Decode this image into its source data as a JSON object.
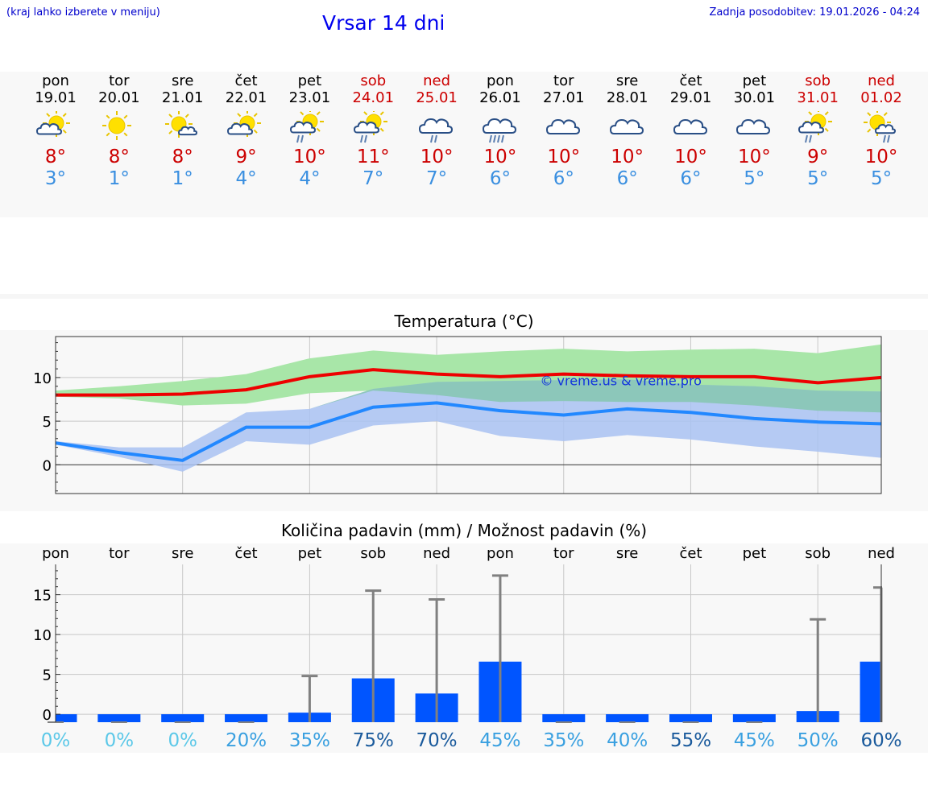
{
  "header": {
    "hint": "(kraj lahko izberete v meniju)",
    "title": "Vrsar 14 dni",
    "updated": "Zadnja posodobitev: 19.01.2026 - 04:24"
  },
  "colors": {
    "title": "#0000ee",
    "weekend": "#cc0000",
    "tmax": "#cc0000",
    "tmin": "#3a8fe0",
    "max_line": "#ee0000",
    "min_line": "#2288ff",
    "max_band": "#a8e6a8",
    "min_band": "#a9c2f2",
    "overlap_band": "#80c6a6",
    "bar": "#0055ff",
    "whisker": "#808080"
  },
  "days": [
    {
      "name": "pon",
      "date": "19.01",
      "weekend": false,
      "icon": "sun-cloud-icon",
      "tmax": "8°",
      "tmin": "3°"
    },
    {
      "name": "tor",
      "date": "20.01",
      "weekend": false,
      "icon": "sun-icon",
      "tmax": "8°",
      "tmin": "1°"
    },
    {
      "name": "sre",
      "date": "21.01",
      "weekend": false,
      "icon": "sun-small-cloud-icon",
      "tmax": "8°",
      "tmin": "1°"
    },
    {
      "name": "čet",
      "date": "22.01",
      "weekend": false,
      "icon": "sun-cloud-icon",
      "tmax": "9°",
      "tmin": "4°"
    },
    {
      "name": "pet",
      "date": "23.01",
      "weekend": false,
      "icon": "sun-cloud-rain-icon",
      "tmax": "10°",
      "tmin": "4°"
    },
    {
      "name": "sob",
      "date": "24.01",
      "weekend": true,
      "icon": "sun-cloud-rain-icon",
      "tmax": "11°",
      "tmin": "7°"
    },
    {
      "name": "ned",
      "date": "25.01",
      "weekend": true,
      "icon": "cloud-rain-icon",
      "tmax": "10°",
      "tmin": "7°"
    },
    {
      "name": "pon",
      "date": "26.01",
      "weekend": false,
      "icon": "cloud-heavy-rain-icon",
      "tmax": "10°",
      "tmin": "6°"
    },
    {
      "name": "tor",
      "date": "27.01",
      "weekend": false,
      "icon": "cloud-icon",
      "tmax": "10°",
      "tmin": "6°"
    },
    {
      "name": "sre",
      "date": "28.01",
      "weekend": false,
      "icon": "cloud-icon",
      "tmax": "10°",
      "tmin": "6°"
    },
    {
      "name": "čet",
      "date": "29.01",
      "weekend": false,
      "icon": "cloud-icon",
      "tmax": "10°",
      "tmin": "6°"
    },
    {
      "name": "pet",
      "date": "30.01",
      "weekend": false,
      "icon": "cloud-icon",
      "tmax": "10°",
      "tmin": "5°"
    },
    {
      "name": "sob",
      "date": "31.01",
      "weekend": true,
      "icon": "sun-cloud-rain-icon",
      "tmax": "9°",
      "tmin": "5°"
    },
    {
      "name": "ned",
      "date": "01.02",
      "weekend": true,
      "icon": "sun-small-cloud-rain-icon",
      "tmax": "10°",
      "tmin": "5°"
    }
  ],
  "chart_data": [
    {
      "type": "line",
      "title": "Temperatura (°C)",
      "watermark": "© vreme.us & vreme.pro",
      "x": [
        0,
        1,
        2,
        3,
        4,
        5,
        6,
        7,
        8,
        9,
        10,
        11,
        12,
        13
      ],
      "xlim": [
        0,
        13
      ],
      "ylim": [
        -3.3,
        14.7
      ],
      "yticks": [
        0,
        5,
        10
      ],
      "grid": true,
      "series": [
        {
          "name": "max",
          "values": [
            8.0,
            8.0,
            8.1,
            8.6,
            10.1,
            10.9,
            10.4,
            10.1,
            10.4,
            10.2,
            10.1,
            10.1,
            9.4,
            10.0
          ]
        },
        {
          "name": "max_band_upper",
          "values": [
            8.5,
            9.0,
            9.6,
            10.4,
            12.2,
            13.1,
            12.6,
            13.0,
            13.3,
            13.0,
            13.2,
            13.3,
            12.8,
            13.8
          ]
        },
        {
          "name": "max_band_lower",
          "values": [
            7.8,
            7.6,
            6.8,
            7.0,
            8.2,
            8.5,
            8.0,
            7.2,
            7.3,
            7.2,
            7.2,
            6.8,
            6.2,
            6.0
          ]
        },
        {
          "name": "min",
          "values": [
            2.5,
            1.4,
            0.5,
            4.3,
            4.3,
            6.6,
            7.1,
            6.2,
            5.7,
            6.4,
            6.0,
            5.3,
            4.9,
            4.7
          ]
        },
        {
          "name": "min_band_upper",
          "values": [
            2.7,
            2.0,
            2.0,
            6.0,
            6.4,
            8.7,
            9.5,
            9.6,
            9.7,
            9.8,
            9.2,
            9.0,
            8.5,
            8.4
          ]
        },
        {
          "name": "min_band_lower",
          "values": [
            2.3,
            0.9,
            -0.8,
            2.7,
            2.3,
            4.5,
            5.0,
            3.3,
            2.7,
            3.4,
            2.9,
            2.1,
            1.5,
            0.8
          ]
        }
      ]
    },
    {
      "type": "bar",
      "title": "Količina padavin (mm) / Možnost padavin (%)",
      "categories": [
        "pon",
        "tor",
        "sre",
        "čet",
        "pet",
        "sob",
        "ned",
        "pon",
        "tor",
        "sre",
        "čet",
        "pet",
        "sob",
        "ned"
      ],
      "values": [
        0,
        0,
        0,
        0,
        0.2,
        4.5,
        2.6,
        6.6,
        0,
        0,
        0,
        0,
        0.4,
        6.6
      ],
      "max_values": [
        0,
        0,
        0,
        0,
        4.8,
        15.5,
        14.4,
        17.4,
        0,
        0,
        0,
        0,
        11.9,
        15.9
      ],
      "probabilities": [
        "0%",
        "0%",
        "0%",
        "20%",
        "35%",
        "75%",
        "70%",
        "45%",
        "35%",
        "40%",
        "55%",
        "45%",
        "50%",
        "60%"
      ],
      "probability_colors": [
        "#5cc8e8",
        "#5cc8e8",
        "#5cc8e8",
        "#3aa0e0",
        "#3aa0e0",
        "#1a5a9c",
        "#1a5a9c",
        "#3aa0e0",
        "#3aa0e0",
        "#3aa0e0",
        "#1a5a9c",
        "#3aa0e0",
        "#3aa0e0",
        "#1a5a9c"
      ],
      "ylim": [
        -1,
        18.8
      ],
      "yticks": [
        0,
        5,
        10,
        15
      ],
      "grid": true
    }
  ]
}
